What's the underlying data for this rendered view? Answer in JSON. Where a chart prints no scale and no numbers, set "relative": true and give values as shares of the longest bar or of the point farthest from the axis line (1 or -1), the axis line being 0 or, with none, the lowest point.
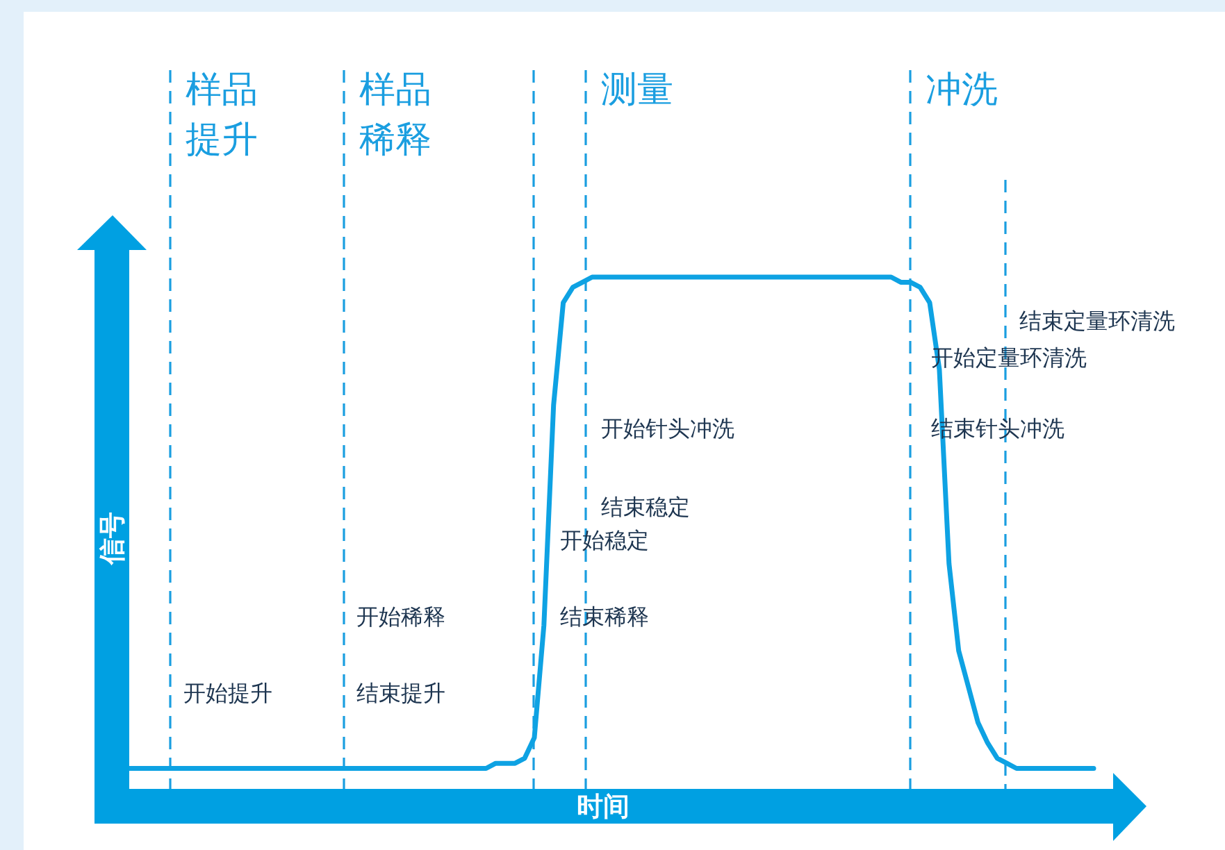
{
  "chart_data": {
    "type": "line",
    "relative": true,
    "xlabel": "时间",
    "ylabel": "信号",
    "line_style": "solid",
    "categories": [
      null,
      null,
      null,
      null,
      null,
      null,
      null,
      null,
      null,
      null,
      null,
      null,
      null,
      null,
      null,
      null,
      null,
      null,
      null,
      null,
      null,
      null,
      null,
      null,
      null,
      null,
      null,
      null,
      null,
      null,
      null,
      null,
      null,
      null,
      null,
      null,
      null,
      null,
      null,
      null,
      null,
      null,
      null,
      null,
      null,
      null,
      null,
      null,
      null,
      null,
      null,
      null,
      null,
      null,
      null,
      null,
      null,
      null,
      null,
      null,
      null,
      null,
      null,
      null,
      null,
      null,
      null,
      null,
      null,
      null,
      null,
      null,
      null,
      null,
      null,
      null,
      null,
      null,
      null,
      null,
      null,
      null,
      null,
      null,
      null,
      null,
      null,
      null,
      null,
      null,
      null,
      null,
      null,
      null,
      null,
      null,
      null,
      null,
      null,
      null,
      null
    ],
    "series": [
      {
        "color": "#0ea2e3",
        "values": [
          0.04,
          0.04,
          0.04,
          0.04,
          0.04,
          0.04,
          0.04,
          0.04,
          0.04,
          0.04,
          0.04,
          0.04,
          0.04,
          0.04,
          0.04,
          0.04,
          0.04,
          0.04,
          0.04,
          0.04,
          0.04,
          0.04,
          0.04,
          0.04,
          0.04,
          0.04,
          0.04,
          0.04,
          0.04,
          0.04,
          0.04,
          0.04,
          0.04,
          0.04,
          0.04,
          0.04,
          0.04,
          0.04,
          0.05,
          0.05,
          0.05,
          0.06,
          0.1,
          0.32,
          0.75,
          0.95,
          0.98,
          0.99,
          1.0,
          1.0,
          1.0,
          1.0,
          1.0,
          1.0,
          1.0,
          1.0,
          1.0,
          1.0,
          1.0,
          1.0,
          1.0,
          1.0,
          1.0,
          1.0,
          1.0,
          1.0,
          1.0,
          1.0,
          1.0,
          1.0,
          1.0,
          1.0,
          1.0,
          1.0,
          1.0,
          1.0,
          1.0,
          1.0,
          1.0,
          1.0,
          0.99,
          0.99,
          0.98,
          0.95,
          0.82,
          0.44,
          0.27,
          0.2,
          0.13,
          0.09,
          0.06,
          0.05,
          0.04,
          0.04,
          0.04,
          0.04,
          0.04,
          0.04,
          0.04,
          0.04,
          0.04
        ]
      }
    ],
    "annotations": [
      "样品提升",
      "样品稀释",
      "测量",
      "冲洗",
      "开始提升",
      "结束提升",
      "开始稀释",
      "结束稀释",
      "开始稳定",
      "结束稳定",
      "开始针头冲洗",
      "结束针头冲洗",
      "开始定量环清洗",
      "结束定量环清洗"
    ]
  }
}
